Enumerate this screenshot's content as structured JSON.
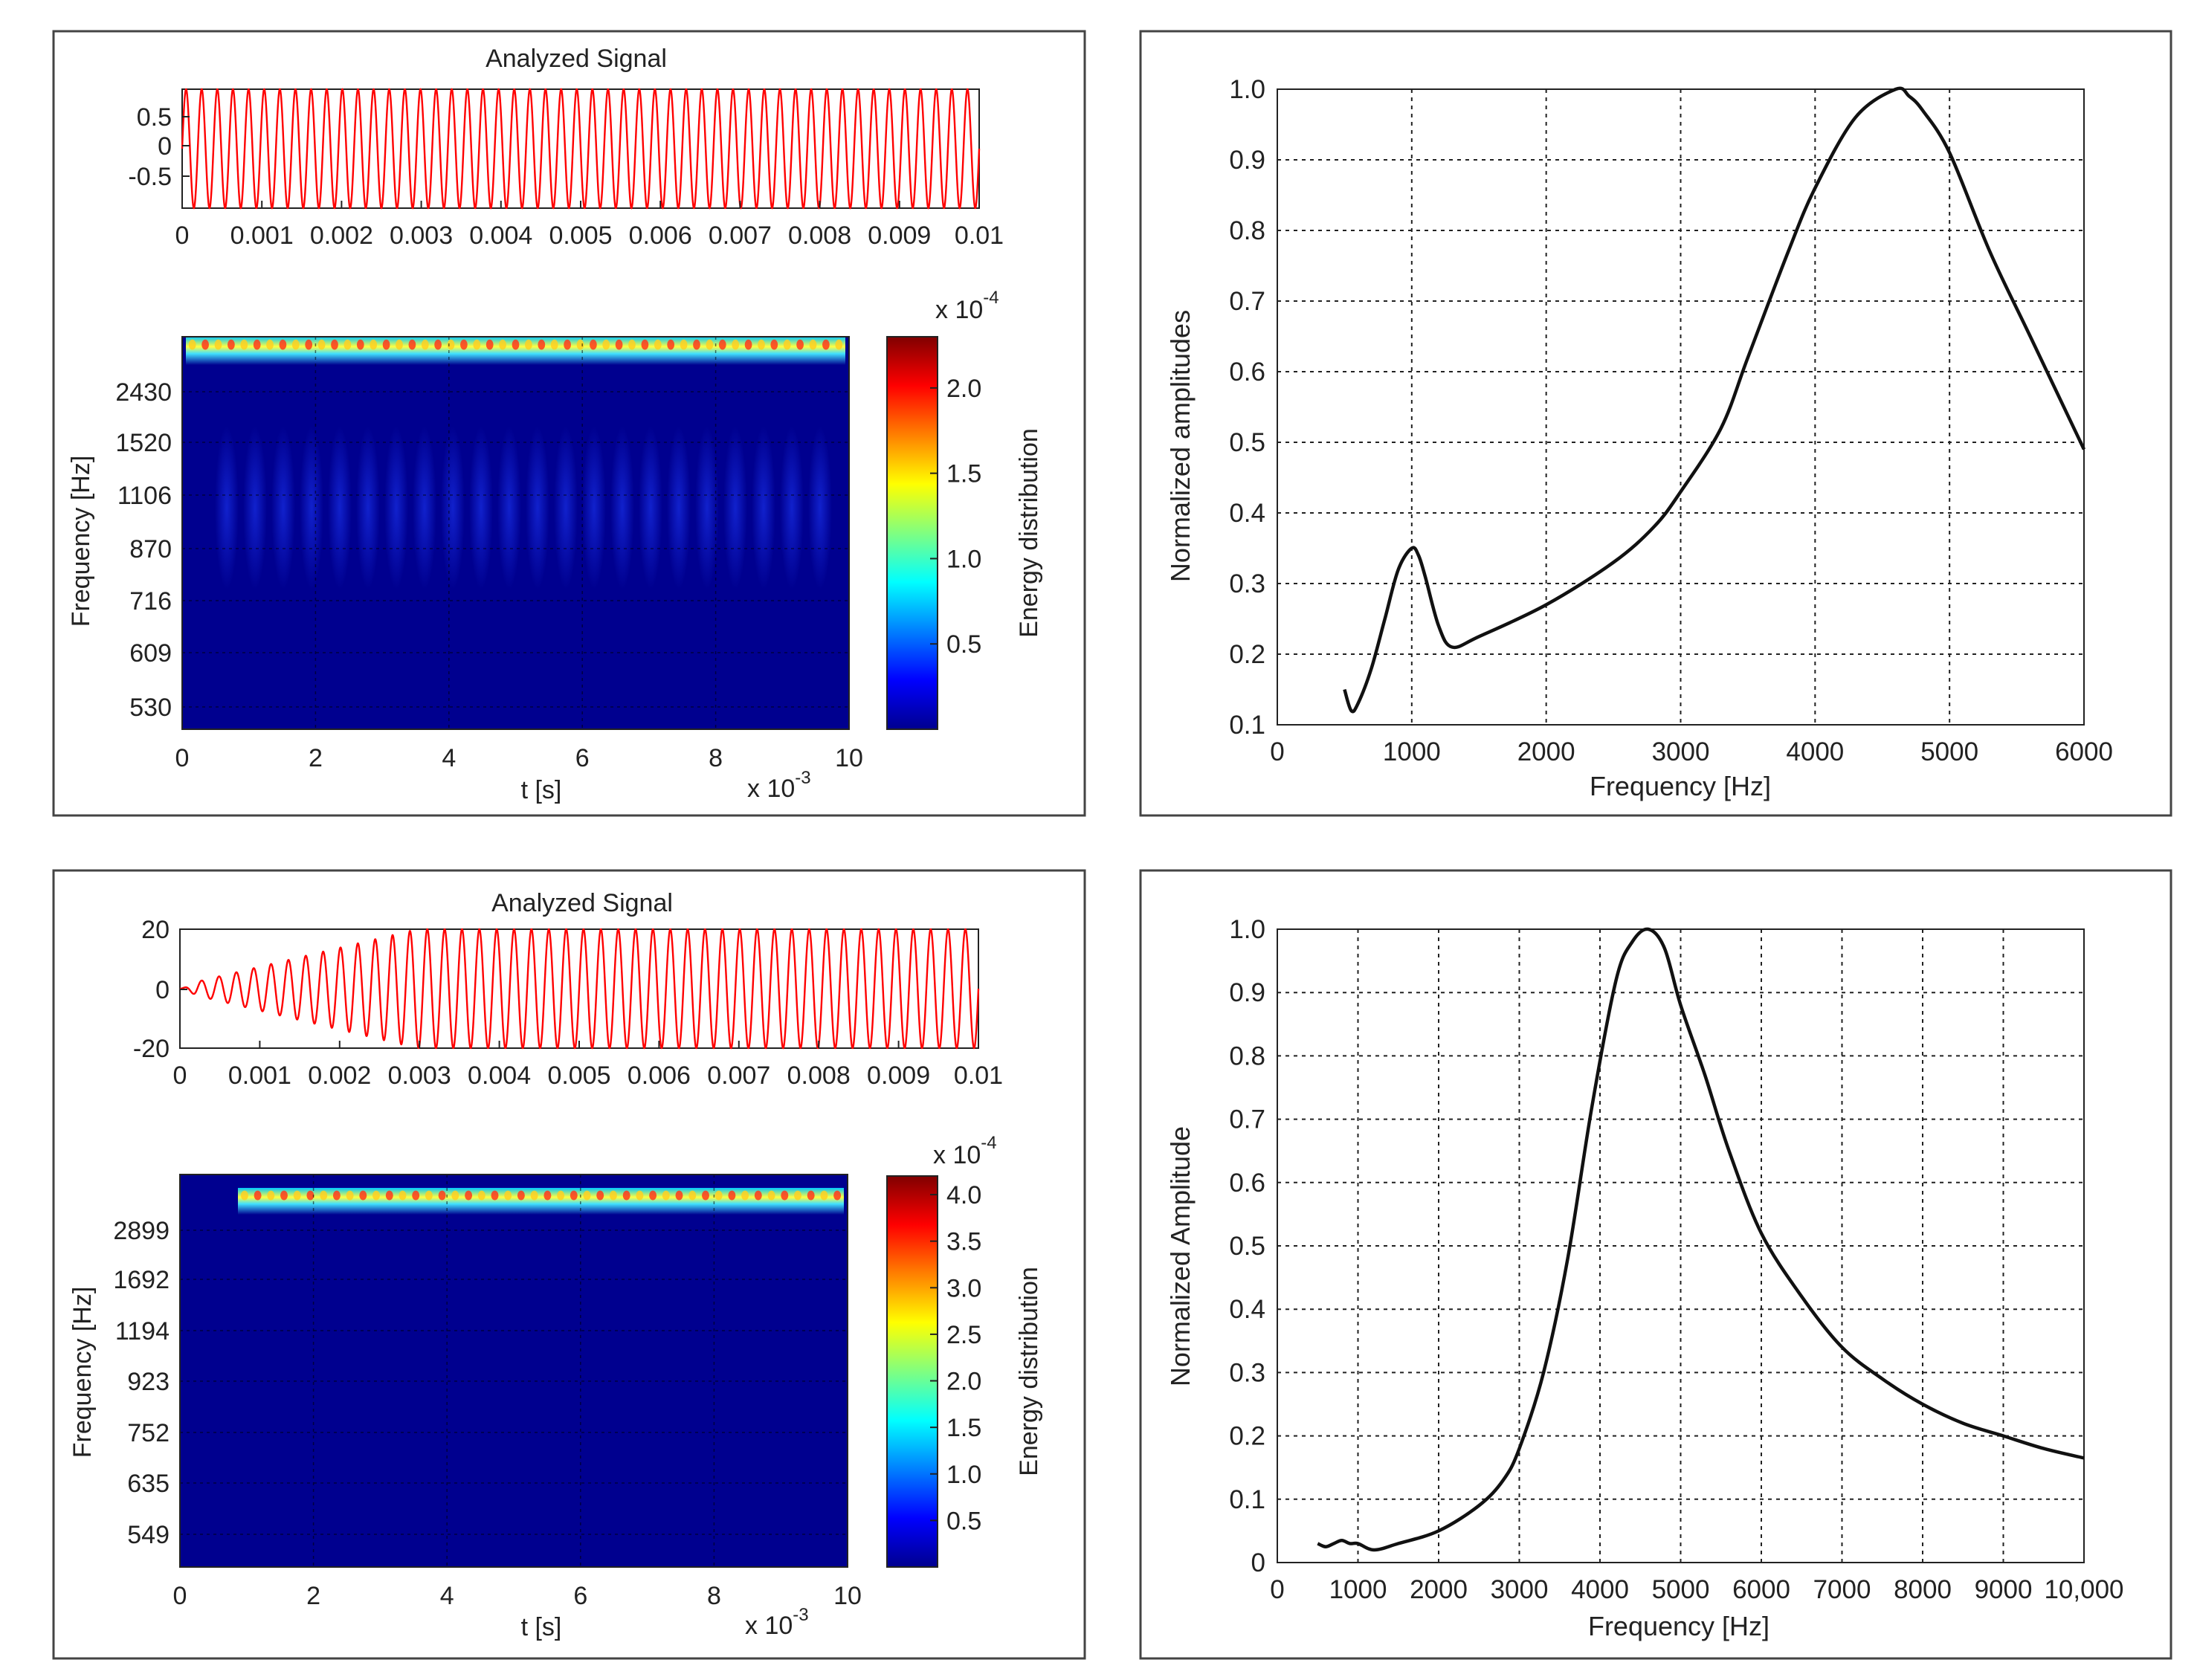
{
  "chart_data": [
    {
      "panel": "top-left",
      "type": "composite",
      "signal": {
        "title": "Analyzed Signal",
        "type": "line",
        "color": "#ff0000",
        "xlim": [
          0,
          0.01
        ],
        "ylim": [
          -1,
          1
        ],
        "ytick_labels": [
          "0.5",
          "0",
          "-0.5"
        ],
        "xtick_labels": [
          "0",
          "0.001",
          "0.002",
          "0.003",
          "0.004",
          "0.005",
          "0.006",
          "0.007",
          "0.008",
          "0.009",
          "0.01"
        ],
        "cycles": 51,
        "amplitude": 1,
        "envelope": "constant"
      },
      "scalogram": {
        "type": "heatmap",
        "xlabel": "t [s]",
        "ylabel": "Frequency [Hz]",
        "xtick_labels": [
          "0",
          "2",
          "4",
          "6",
          "8",
          "10"
        ],
        "x_multiplier": "x 10",
        "x_multiplier_exp": "-3",
        "ytick_labels": [
          "2430",
          "1520",
          "1106",
          "870",
          "716",
          "609",
          "530"
        ],
        "colorbar": {
          "label": "Energy distribution",
          "multiplier": "x 10",
          "multiplier_exp": "-4",
          "tick_labels": [
            "2.0",
            "1.5",
            "1.0",
            "0.5"
          ],
          "max": 2.3
        },
        "ridge_row": "top",
        "ridge_cycles": 51
      }
    },
    {
      "panel": "top-right",
      "type": "line",
      "xlabel": "Frequency [Hz]",
      "ylabel": "Normalized amplitudes",
      "xlim": [
        0,
        6000
      ],
      "ylim": [
        0.1,
        1.0
      ],
      "xtick_labels": [
        "0",
        "1000",
        "2000",
        "3000",
        "4000",
        "5000",
        "6000"
      ],
      "ytick_labels": [
        "1.0",
        "0.9",
        "0.8",
        "0.7",
        "0.6",
        "0.5",
        "0.4",
        "0.3",
        "0.2",
        "0.1"
      ],
      "grid": true,
      "x": [
        500,
        550,
        600,
        700,
        800,
        900,
        1000,
        1050,
        1100,
        1200,
        1300,
        1500,
        2000,
        2500,
        2800,
        3000,
        3300,
        3500,
        3800,
        4000,
        4300,
        4600,
        4700,
        4800,
        5000,
        5300,
        5600,
        6000
      ],
      "y": [
        0.15,
        0.12,
        0.13,
        0.18,
        0.25,
        0.32,
        0.35,
        0.34,
        0.31,
        0.24,
        0.21,
        0.225,
        0.27,
        0.33,
        0.38,
        0.43,
        0.52,
        0.62,
        0.77,
        0.86,
        0.96,
        1.0,
        0.99,
        0.97,
        0.91,
        0.77,
        0.65,
        0.49
      ]
    },
    {
      "panel": "bottom-left",
      "type": "composite",
      "signal": {
        "title": "Analyzed Signal",
        "type": "line",
        "color": "#ff0000",
        "xlim": [
          0,
          0.01
        ],
        "ylim": [
          -20,
          20
        ],
        "ytick_labels": [
          "20",
          "0",
          "-20"
        ],
        "xtick_labels": [
          "0",
          "0.001",
          "0.002",
          "0.003",
          "0.004",
          "0.005",
          "0.006",
          "0.007",
          "0.008",
          "0.009",
          "0.01"
        ],
        "cycles": 46,
        "amplitude": 20,
        "envelope": "rising"
      },
      "scalogram": {
        "type": "heatmap",
        "xlabel": "t [s]",
        "ylabel": "Frequency [Hz]",
        "xtick_labels": [
          "0",
          "2",
          "4",
          "6",
          "8",
          "10"
        ],
        "x_multiplier": "x 10",
        "x_multiplier_exp": "-3",
        "ytick_labels": [
          "2899",
          "1692",
          "1194",
          "923",
          "752",
          "635",
          "549"
        ],
        "colorbar": {
          "label": "Energy distribution",
          "multiplier": "x 10",
          "multiplier_exp": "-4",
          "tick_labels": [
            "4.0",
            "3.5",
            "3.0",
            "2.5",
            "2.0",
            "1.5",
            "1.0",
            "0.5"
          ],
          "max": 4.2
        },
        "ridge_row": "top",
        "ridge_cycles": 46
      }
    },
    {
      "panel": "bottom-right",
      "type": "line",
      "xlabel": "Frequency [Hz]",
      "ylabel": "Normalized Amplitude",
      "xlim": [
        0,
        10000
      ],
      "ylim": [
        0,
        1.0
      ],
      "xtick_labels": [
        "0",
        "1000",
        "2000",
        "3000",
        "4000",
        "5000",
        "6000",
        "7000",
        "8000",
        "9000",
        "10,000"
      ],
      "ytick_labels": [
        "1.0",
        "0.9",
        "0.8",
        "0.7",
        "0.6",
        "0.5",
        "0.4",
        "0.3",
        "0.2",
        "0.1",
        "0"
      ],
      "grid": true,
      "x": [
        500,
        600,
        700,
        800,
        900,
        1000,
        1200,
        1500,
        2000,
        2500,
        2800,
        3000,
        3300,
        3600,
        3900,
        4200,
        4400,
        4600,
        4800,
        5000,
        5300,
        5600,
        6000,
        6500,
        7000,
        7500,
        8000,
        8500,
        9000,
        9500,
        10000
      ],
      "y": [
        0.03,
        0.025,
        0.03,
        0.035,
        0.03,
        0.03,
        0.02,
        0.03,
        0.05,
        0.09,
        0.13,
        0.18,
        0.3,
        0.48,
        0.72,
        0.92,
        0.98,
        1.0,
        0.97,
        0.88,
        0.77,
        0.65,
        0.52,
        0.42,
        0.34,
        0.29,
        0.25,
        0.22,
        0.2,
        0.18,
        0.165
      ]
    }
  ]
}
